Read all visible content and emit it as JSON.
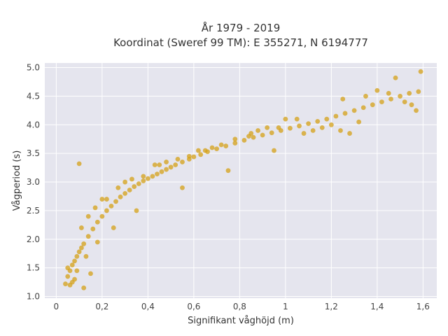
{
  "chart_data": {
    "type": "scatter",
    "title": "År 1979 - 2019",
    "subtitle": "Koordinat (Sweref 99 TM): E 355271, N 6194777",
    "xlabel": "Signifikant våghöjd (m)",
    "ylabel": "Vågperiod (s)",
    "xlim": [
      -0.05,
      1.66
    ],
    "ylim": [
      0.97,
      5.08
    ],
    "xticks": [
      0,
      0.2,
      0.4,
      0.6,
      0.8,
      1,
      1.2,
      1.4,
      1.6
    ],
    "xtick_labels": [
      "0",
      "0,2",
      "0,4",
      "0,6",
      "0,8",
      "1",
      "1,2",
      "1,4",
      "1,6"
    ],
    "yticks": [
      1.0,
      1.5,
      2.0,
      2.5,
      3.0,
      3.5,
      4.0,
      4.5,
      5.0
    ],
    "ytick_labels": [
      "1.0",
      "1.5",
      "2.0",
      "2.5",
      "3.0",
      "3.5",
      "4.0",
      "4.5",
      "5.0"
    ],
    "grid": true,
    "background": "#e5e5ee",
    "marker_color": "#d4a017",
    "series": [
      {
        "x": [
          0.04,
          0.05,
          0.06,
          0.07,
          0.08,
          0.09,
          0.1,
          0.11,
          0.12,
          0.14,
          0.16,
          0.18,
          0.2,
          0.22,
          0.24,
          0.26,
          0.28,
          0.3,
          0.32,
          0.34,
          0.36,
          0.38,
          0.4,
          0.42,
          0.44,
          0.46,
          0.48,
          0.5,
          0.52,
          0.55,
          0.58,
          0.6,
          0.63,
          0.66,
          0.7,
          0.74,
          0.78,
          0.82,
          0.86,
          0.9,
          0.94,
          0.98,
          1.02,
          1.06,
          1.1,
          1.14,
          1.18,
          1.22,
          1.26,
          1.3,
          1.34,
          1.38,
          1.42,
          1.46,
          1.5,
          1.54,
          1.58,
          0.1,
          0.12,
          0.15,
          0.08,
          0.05,
          0.2,
          0.3,
          0.45,
          0.65,
          0.85,
          1.05,
          1.25,
          1.35,
          1.4,
          1.45,
          1.48,
          1.52,
          1.55,
          1.57,
          1.59,
          1.24,
          1.32,
          1.28,
          0.95,
          0.75,
          0.55,
          0.35,
          0.25,
          0.18,
          0.13,
          0.09,
          0.07,
          0.06,
          0.11,
          0.14,
          0.17,
          0.22,
          0.27,
          0.33,
          0.38,
          0.43,
          0.48,
          0.53,
          0.58,
          0.62,
          0.68,
          0.72,
          0.78,
          0.84,
          0.88,
          0.92,
          0.97,
          1.0,
          1.08,
          1.12,
          1.16,
          1.2
        ],
        "y": [
          1.22,
          1.35,
          1.45,
          1.55,
          1.62,
          1.7,
          1.78,
          1.85,
          1.92,
          2.05,
          2.18,
          2.3,
          2.4,
          2.5,
          2.58,
          2.66,
          2.74,
          2.8,
          2.86,
          2.92,
          2.97,
          3.02,
          3.06,
          3.1,
          3.14,
          3.18,
          3.22,
          3.26,
          3.3,
          3.35,
          3.4,
          3.44,
          3.48,
          3.53,
          3.58,
          3.63,
          3.68,
          3.73,
          3.78,
          3.82,
          3.86,
          3.9,
          3.94,
          3.98,
          4.02,
          4.06,
          4.1,
          4.15,
          4.2,
          4.25,
          4.3,
          4.35,
          4.4,
          4.45,
          4.5,
          4.55,
          4.58,
          3.32,
          1.15,
          1.4,
          1.3,
          1.5,
          2.7,
          3.0,
          3.3,
          3.55,
          3.85,
          4.1,
          4.45,
          4.5,
          4.6,
          4.55,
          4.82,
          4.4,
          4.35,
          4.25,
          4.93,
          3.9,
          4.05,
          3.85,
          3.55,
          3.2,
          2.9,
          2.5,
          2.2,
          1.95,
          1.7,
          1.45,
          1.25,
          1.2,
          2.2,
          2.4,
          2.55,
          2.7,
          2.9,
          3.05,
          3.1,
          3.3,
          3.35,
          3.4,
          3.45,
          3.55,
          3.6,
          3.65,
          3.75,
          3.8,
          3.9,
          3.95,
          3.95,
          4.1,
          3.85,
          3.9,
          3.95,
          4.0
        ]
      }
    ]
  }
}
